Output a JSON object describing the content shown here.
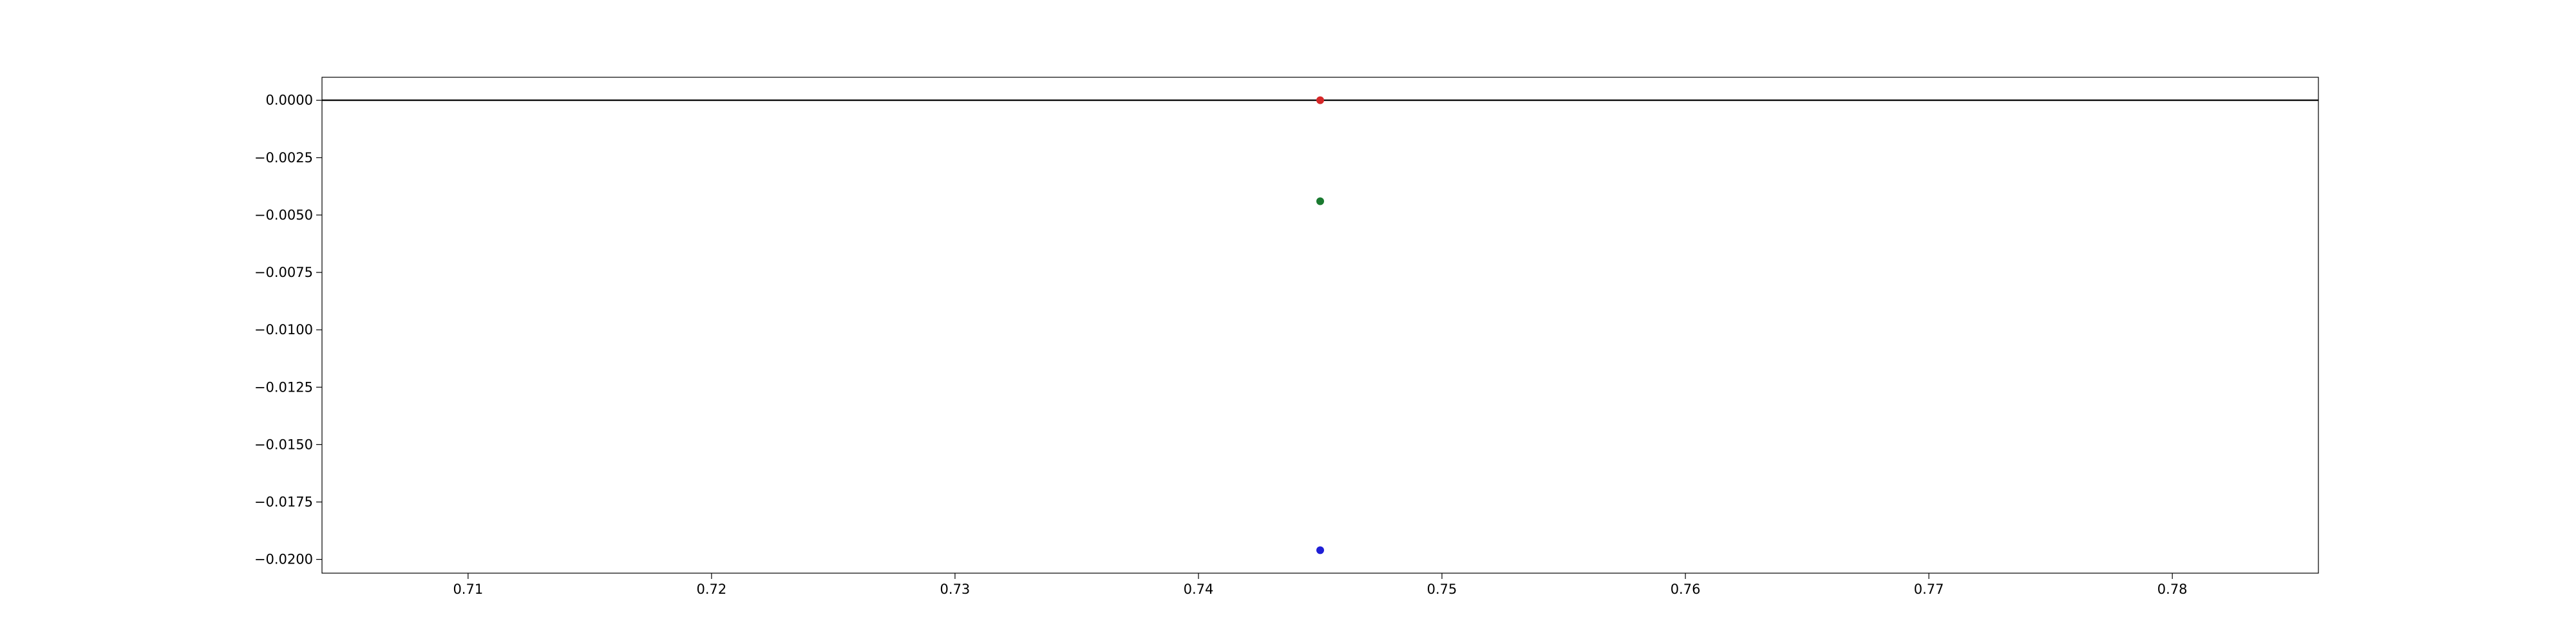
{
  "chart_data": {
    "type": "scatter",
    "title": "",
    "xlabel": "",
    "ylabel": "",
    "xlim": [
      0.704,
      0.786
    ],
    "ylim": [
      -0.0206,
      0.001
    ],
    "x_ticks": [
      {
        "value": 0.71,
        "label": "0.71"
      },
      {
        "value": 0.72,
        "label": "0.72"
      },
      {
        "value": 0.73,
        "label": "0.73"
      },
      {
        "value": 0.74,
        "label": "0.74"
      },
      {
        "value": 0.75,
        "label": "0.75"
      },
      {
        "value": 0.76,
        "label": "0.76"
      },
      {
        "value": 0.77,
        "label": "0.77"
      },
      {
        "value": 0.78,
        "label": "0.78"
      }
    ],
    "y_ticks": [
      {
        "value": 0.0,
        "label": "0.0000"
      },
      {
        "value": -0.0025,
        "label": "−0.0025"
      },
      {
        "value": -0.005,
        "label": "−0.0050"
      },
      {
        "value": -0.0075,
        "label": "−0.0075"
      },
      {
        "value": -0.01,
        "label": "−0.0100"
      },
      {
        "value": -0.0125,
        "label": "−0.0125"
      },
      {
        "value": -0.015,
        "label": "−0.0150"
      },
      {
        "value": -0.0175,
        "label": "−0.0175"
      },
      {
        "value": -0.02,
        "label": "−0.0200"
      }
    ],
    "reference_line": {
      "y": 0.0,
      "color": "#000000"
    },
    "grid": false,
    "legend": "none",
    "points": [
      {
        "x": 0.745,
        "y": 0.0,
        "color": "#d62728"
      },
      {
        "x": 0.745,
        "y": -0.0044,
        "color": "#1a7a30"
      },
      {
        "x": 0.745,
        "y": -0.0196,
        "color": "#1f1fd6"
      }
    ]
  }
}
